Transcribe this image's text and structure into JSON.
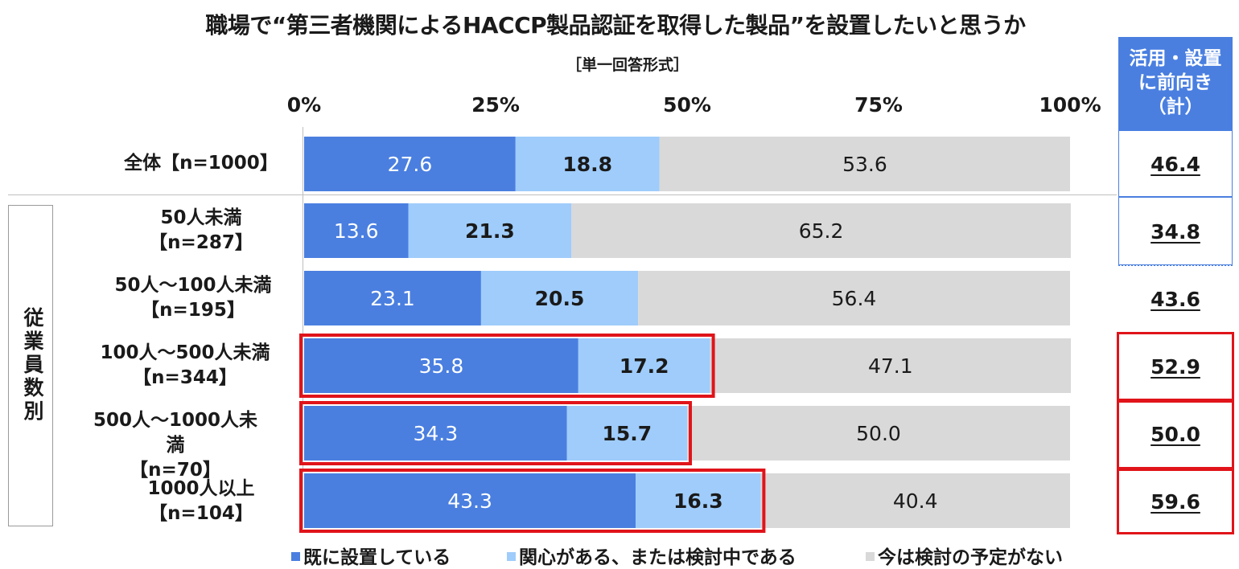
{
  "title": "職場で“第三者機関によるHACCP製品認証を取得した製品”を設置したいと思うか",
  "subtitle": "［単一回答形式］",
  "group_label": "従業員数別",
  "cumulative_header": [
    "活用・設置",
    "に前向き",
    "（計）"
  ],
  "legend": {
    "s1": "既に設置している",
    "s2": "関心がある、または検討中である",
    "s3": "今は検討の予定がない"
  },
  "rows": [
    {
      "label_lines": [
        "全体【n=1000】"
      ],
      "cumulative": "46.4"
    },
    {
      "label_lines": [
        "50人未満",
        "【n=287】"
      ],
      "cumulative": "34.8"
    },
    {
      "label_lines": [
        "50人～100人未満",
        "【n=195】"
      ],
      "cumulative": "43.6"
    },
    {
      "label_lines": [
        "100人～500人未満",
        "【n=344】"
      ],
      "cumulative": "52.9"
    },
    {
      "label_lines": [
        "500人～1000人未満",
        "【n=70】"
      ],
      "cumulative": "50.0"
    },
    {
      "label_lines": [
        "1000人以上",
        "【n=104】"
      ],
      "cumulative": "59.6"
    }
  ],
  "chart_data": {
    "type": "bar",
    "orientation": "horizontal",
    "stacked": true,
    "percent_axis": true,
    "xlim": [
      0,
      100
    ],
    "x_ticks": [
      "0%",
      "25%",
      "50%",
      "75%",
      "100%"
    ],
    "categories": [
      "全体【n=1000】",
      "50人未満【n=287】",
      "50人～100人未満【n=195】",
      "100人～500人未満【n=344】",
      "500人～1000人未満【n=70】",
      "1000人以上【n=104】"
    ],
    "series": [
      {
        "name": "既に設置している",
        "color": "#4a7fe0",
        "label_color": "#ffffff",
        "values": [
          27.6,
          13.6,
          23.1,
          35.8,
          34.3,
          43.3
        ],
        "labels": [
          "27.6",
          "13.6",
          "23.1",
          "35.8",
          "34.3",
          "43.3"
        ]
      },
      {
        "name": "関心がある、または検討中である",
        "color": "#9fccfb",
        "label_color": "#1a1a1a",
        "values": [
          18.8,
          21.3,
          20.5,
          17.2,
          15.7,
          16.3
        ],
        "labels": [
          "18.8",
          "21.3",
          "20.5",
          "17.2",
          "15.7",
          "16.3"
        ]
      },
      {
        "name": "今は検討の予定がない",
        "color": "#d9d9d9",
        "label_color": "#1a1a1a",
        "values": [
          53.6,
          65.2,
          56.4,
          47.1,
          50.0,
          40.4
        ],
        "labels": [
          "53.6",
          "65.2",
          "56.4",
          "47.1",
          "50.0",
          "40.4"
        ]
      }
    ],
    "highlighted_rows": [
      3,
      4,
      5
    ],
    "highlight_color": "#e0141a",
    "legend_position": "bottom"
  }
}
